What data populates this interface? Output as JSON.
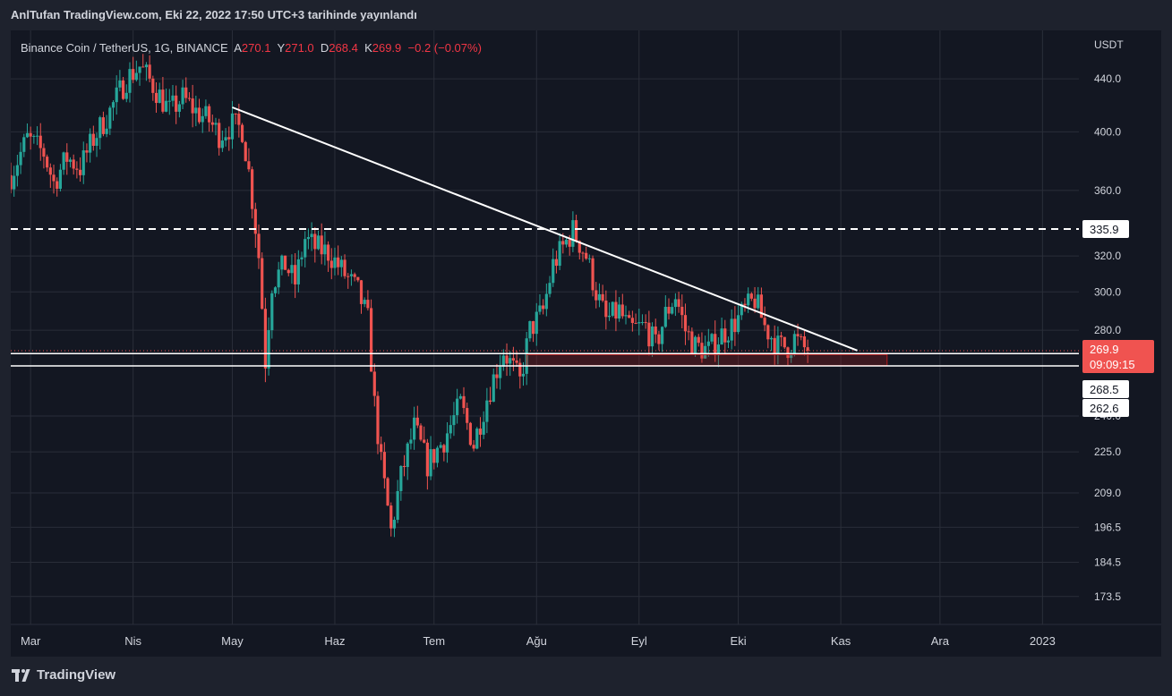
{
  "header": {
    "author": "AnlTufan",
    "text": "AnlTufan TradingView.com, Eki 22, 2022 17:50 UTC+3 tarihinde yayınlandı"
  },
  "legend": {
    "symbol": "Binance Coin / TetherUS, 1G, BINANCE",
    "o_label": "A",
    "o": "270.1",
    "h_label": "Y",
    "h": "271.0",
    "l_label": "D",
    "l": "268.4",
    "c_label": "K",
    "c": "269.9",
    "change": "−0.2 (−0.07%)"
  },
  "footer": {
    "brand": "TradingView"
  },
  "colors": {
    "up": "#26a69a",
    "down": "#ef5350",
    "background": "#131722",
    "frame": "#1e222d",
    "grid": "#2a2e39",
    "text": "#d1d4dc",
    "line": "#ffffff",
    "zone": "#b71c1c"
  },
  "chart_data": {
    "type": "candlestick",
    "currency_label": "USDT",
    "y_scale": "log",
    "ylim": [
      165,
      480
    ],
    "y_ticks": [
      440.0,
      400.0,
      360.0,
      320.0,
      300.0,
      280.0,
      240.0,
      225.0,
      209.0,
      196.5,
      184.5,
      173.5
    ],
    "x_range": [
      "2022-02-23",
      "2023-01-12"
    ],
    "x_ticks": [
      {
        "date": "2022-03-01",
        "label": "Mar"
      },
      {
        "date": "2022-04-01",
        "label": "Nis"
      },
      {
        "date": "2022-05-01",
        "label": "May"
      },
      {
        "date": "2022-06-01",
        "label": "Haz"
      },
      {
        "date": "2022-07-01",
        "label": "Tem"
      },
      {
        "date": "2022-08-01",
        "label": "Ağu"
      },
      {
        "date": "2022-09-01",
        "label": "Eyl"
      },
      {
        "date": "2022-10-01",
        "label": "Eki"
      },
      {
        "date": "2022-11-01",
        "label": "Kas"
      },
      {
        "date": "2022-12-01",
        "label": "Ara"
      },
      {
        "date": "2023-01-01",
        "label": "2023"
      }
    ],
    "price_path": [
      [
        "2022-02-23",
        370
      ],
      [
        "2022-02-28",
        395
      ],
      [
        "2022-03-05",
        385
      ],
      [
        "2022-03-08",
        365
      ],
      [
        "2022-03-12",
        382
      ],
      [
        "2022-03-16",
        375
      ],
      [
        "2022-03-20",
        395
      ],
      [
        "2022-03-25",
        415
      ],
      [
        "2022-03-30",
        440
      ],
      [
        "2022-04-03",
        450
      ],
      [
        "2022-04-07",
        435
      ],
      [
        "2022-04-12",
        415
      ],
      [
        "2022-04-16",
        425
      ],
      [
        "2022-04-20",
        415
      ],
      [
        "2022-04-24",
        408
      ],
      [
        "2022-04-27",
        398
      ],
      [
        "2022-05-01",
        405
      ],
      [
        "2022-05-04",
        402
      ],
      [
        "2022-05-06",
        372
      ],
      [
        "2022-05-09",
        320
      ],
      [
        "2022-05-11",
        265
      ],
      [
        "2022-05-13",
        305
      ],
      [
        "2022-05-17",
        315
      ],
      [
        "2022-05-20",
        305
      ],
      [
        "2022-05-23",
        330
      ],
      [
        "2022-05-26",
        325
      ],
      [
        "2022-05-30",
        322
      ],
      [
        "2022-06-03",
        312
      ],
      [
        "2022-06-08",
        300
      ],
      [
        "2022-06-11",
        285
      ],
      [
        "2022-06-13",
        245
      ],
      [
        "2022-06-15",
        220
      ],
      [
        "2022-06-18",
        195
      ],
      [
        "2022-06-21",
        215
      ],
      [
        "2022-06-25",
        235
      ],
      [
        "2022-06-29",
        220
      ],
      [
        "2022-07-04",
        230
      ],
      [
        "2022-07-09",
        245
      ],
      [
        "2022-07-13",
        228
      ],
      [
        "2022-07-17",
        248
      ],
      [
        "2022-07-22",
        270
      ],
      [
        "2022-07-27",
        255
      ],
      [
        "2022-07-30",
        280
      ],
      [
        "2022-08-03",
        290
      ],
      [
        "2022-08-06",
        315
      ],
      [
        "2022-08-09",
        325
      ],
      [
        "2022-08-12",
        335
      ],
      [
        "2022-08-16",
        320
      ],
      [
        "2022-08-19",
        300
      ],
      [
        "2022-08-22",
        285
      ],
      [
        "2022-08-26",
        290
      ],
      [
        "2022-08-29",
        280
      ],
      [
        "2022-09-03",
        282
      ],
      [
        "2022-09-06",
        272
      ],
      [
        "2022-09-09",
        288
      ],
      [
        "2022-09-12",
        298
      ],
      [
        "2022-09-15",
        280
      ],
      [
        "2022-09-18",
        272
      ],
      [
        "2022-09-22",
        270
      ],
      [
        "2022-09-26",
        278
      ],
      [
        "2022-09-29",
        282
      ],
      [
        "2022-10-03",
        290
      ],
      [
        "2022-10-06",
        296
      ],
      [
        "2022-10-09",
        282
      ],
      [
        "2022-10-13",
        272
      ],
      [
        "2022-10-16",
        272
      ],
      [
        "2022-10-18",
        276
      ],
      [
        "2022-10-20",
        272
      ],
      [
        "2022-10-22",
        269.9
      ]
    ],
    "last_price": {
      "value": 269.9,
      "label": "269.9",
      "countdown": "09:09:15"
    },
    "horizontal_lines": [
      {
        "value": 335.9,
        "label": "335.9",
        "style": "dashed"
      },
      {
        "value": 268.5,
        "label": "268.5",
        "style": "solid"
      },
      {
        "value": 262.6,
        "label": "262.6",
        "style": "solid"
      }
    ],
    "trendline": {
      "start": [
        "2022-05-01",
        418
      ],
      "end": [
        "2022-11-06",
        270
      ]
    },
    "support_zone": {
      "start": "2022-07-29",
      "end": "2022-11-15",
      "top": 268.0,
      "bottom": 262.8
    }
  }
}
